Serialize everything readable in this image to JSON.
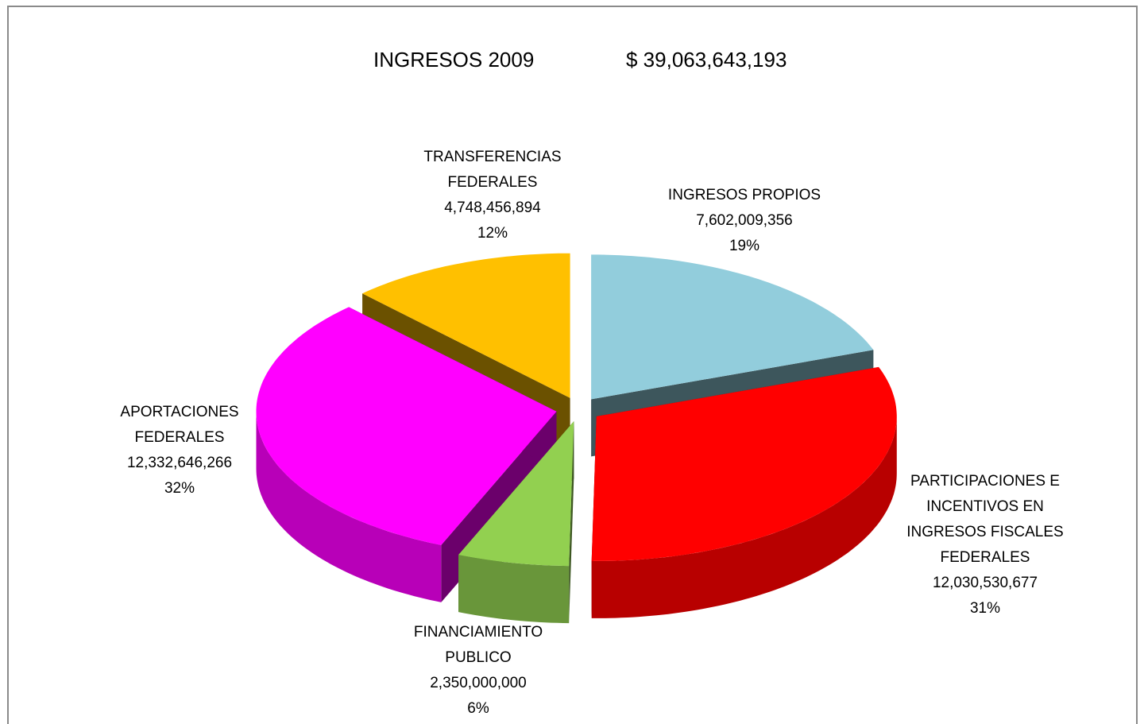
{
  "chart_data": {
    "type": "pie3d",
    "title": "INGRESOS 2009",
    "total": 39063643193,
    "total_label": "$ 39,063,643,193",
    "categories": [
      "INGRESOS PROPIOS",
      "PARTICIPACIONES E INCENTIVOS EN INGRESOS FISCALES FEDERALES",
      "FINANCIAMIENTO PUBLICO",
      "APORTACIONES FEDERALES",
      "TRANSFERENCIAS FEDERALES"
    ],
    "values": [
      7602009356,
      12030530677,
      2350000000,
      12332646266,
      4748456894
    ],
    "value_labels": [
      "7,602,009,356",
      "12,030,530,677",
      "2,350,000,000",
      "12,332,646,266",
      "4,748,456,894"
    ],
    "percentages": [
      19,
      31,
      6,
      32,
      12
    ],
    "percentage_labels": [
      "19%",
      "31%",
      "6%",
      "32%",
      "12%"
    ],
    "colors": [
      "#92cddc",
      "#ff0000",
      "#92d050",
      "#ff00ff",
      "#ffc000"
    ]
  }
}
